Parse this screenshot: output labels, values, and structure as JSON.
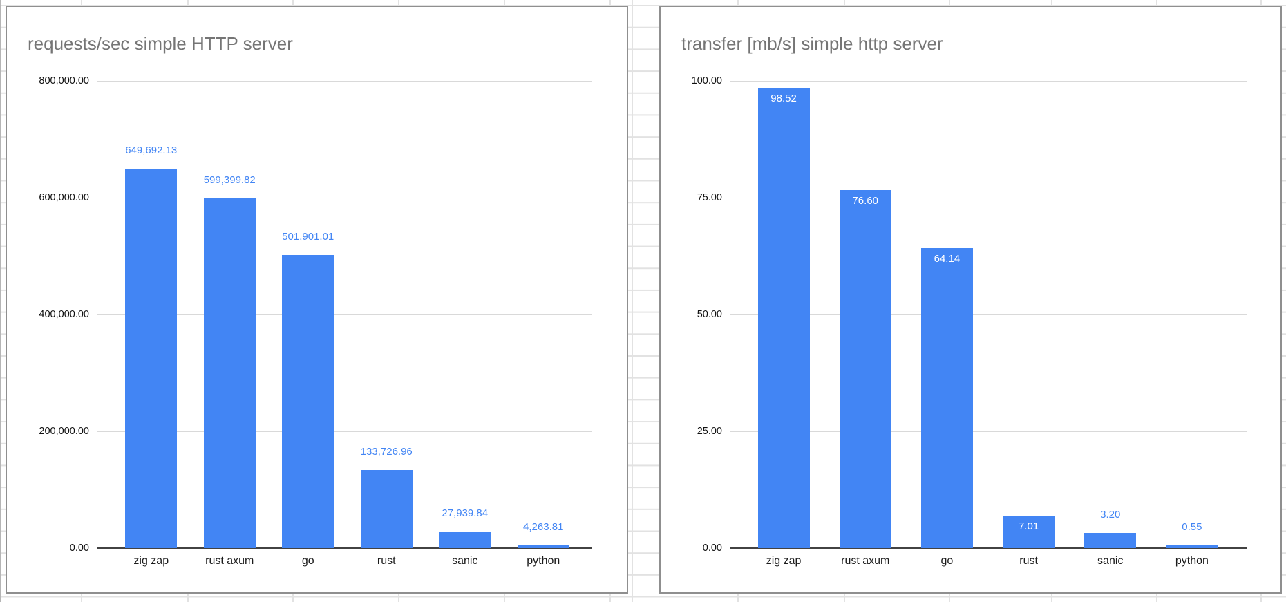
{
  "app": {
    "context": "spreadsheet-embedded-charts"
  },
  "colors": {
    "bar": "#4285f4",
    "data_label_outside": "#4285f4",
    "data_label_inside": "#ffffff",
    "title_text": "#757575",
    "axis_text": "#111111",
    "category_text": "#1b1b1b",
    "gridline": "#d9d9d9",
    "axis_line": "#424242",
    "card_border": "#8f8f8f",
    "sheet_gridline": "#e2e2e2"
  },
  "chart_data": [
    {
      "type": "bar",
      "title": "requests/sec simple HTTP server",
      "xlabel": "",
      "ylabel": "",
      "ylim": [
        0,
        800000
      ],
      "ymax": 800000,
      "grid": true,
      "legend": "none",
      "yticks": [
        "800,000.00",
        "600,000.00",
        "400,000.00",
        "200,000.00",
        "0.00"
      ],
      "categories": [
        "zig zap",
        "rust axum",
        "go",
        "rust",
        "sanic",
        "python"
      ],
      "values": [
        649692.13,
        599399.82,
        501901.01,
        133726.96,
        27939.84,
        4263.81
      ],
      "labels": [
        "649,692.13",
        "599,399.82",
        "501,901.01",
        "133,726.96",
        "27,939.84",
        "4,263.81"
      ],
      "label_placement": [
        "above",
        "above",
        "above",
        "above",
        "above",
        "above"
      ]
    },
    {
      "type": "bar",
      "title": "transfer [mb/s] simple http server",
      "xlabel": "",
      "ylabel": "",
      "ylim": [
        0,
        100
      ],
      "ymax": 100,
      "grid": true,
      "legend": "none",
      "yticks": [
        "100.00",
        "75.00",
        "50.00",
        "25.00",
        "0.00"
      ],
      "categories": [
        "zig zap",
        "rust axum",
        "go",
        "rust",
        "sanic",
        "python"
      ],
      "values": [
        98.52,
        76.6,
        64.14,
        7.01,
        3.2,
        0.55
      ],
      "labels": [
        "98.52",
        "76.60",
        "64.14",
        "7.01",
        "3.20",
        "0.55"
      ],
      "label_placement": [
        "inside",
        "inside",
        "inside",
        "inside",
        "above",
        "above"
      ]
    }
  ]
}
